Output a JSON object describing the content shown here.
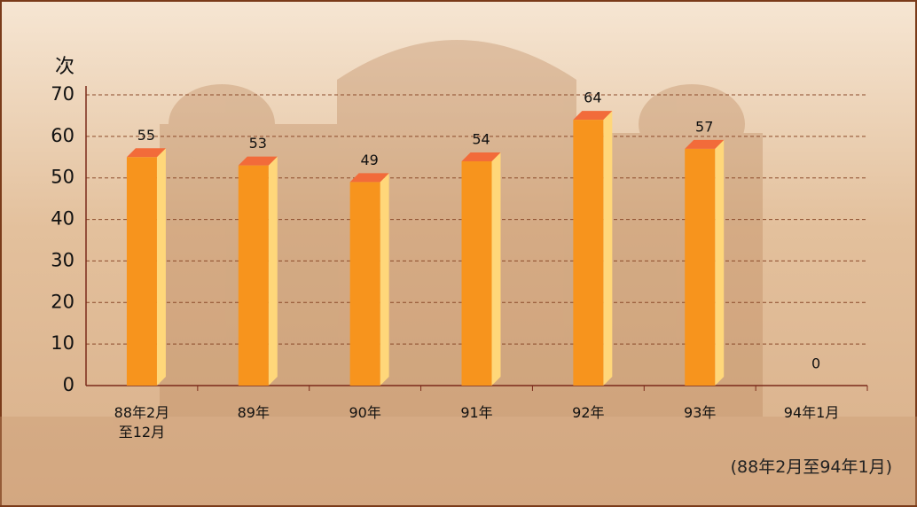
{
  "chart_data": {
    "type": "bar",
    "y_label": "次",
    "categories": [
      "88年2月\n至12月",
      "89年",
      "90年",
      "91年",
      "92年",
      "93年",
      "94年1月"
    ],
    "values": [
      55,
      53,
      49,
      54,
      64,
      57,
      0
    ],
    "color": "#f7941d",
    "ylim": [
      0,
      70
    ],
    "yticks": [
      0,
      10,
      20,
      30,
      40,
      50,
      60,
      70
    ],
    "grid": true,
    "note": "(88年2月至94年1月)"
  }
}
